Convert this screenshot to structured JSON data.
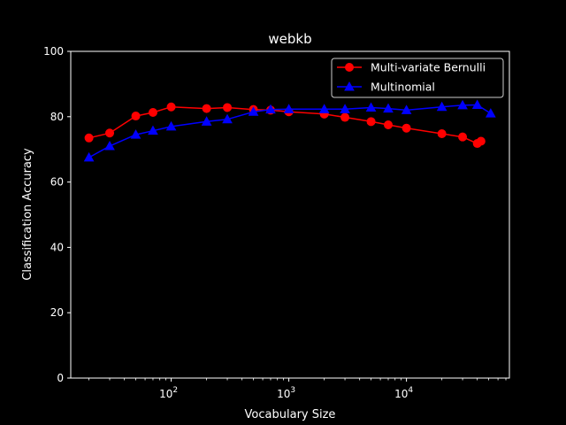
{
  "chart_data": {
    "type": "line",
    "title": "webkb",
    "xlabel": "Vocabulary Size",
    "ylabel": "Classification Accuracy",
    "xscale": "log",
    "xlim": [
      14,
      75000
    ],
    "ylim": [
      0,
      100
    ],
    "yticks": [
      "0",
      "20",
      "40",
      "60",
      "80",
      "100"
    ],
    "xticks": [
      {
        "value": 100,
        "base": "10",
        "exp": "2"
      },
      {
        "value": 1000,
        "base": "10",
        "exp": "3"
      },
      {
        "value": 10000,
        "base": "10",
        "exp": "4"
      }
    ],
    "grid": false,
    "legend_position": "top-right",
    "series": [
      {
        "name": "Multi-variate Bernulli",
        "color": "#ff0000",
        "marker": "circle",
        "x": [
          20,
          30,
          50,
          70,
          100,
          200,
          300,
          500,
          700,
          1000,
          2000,
          3000,
          5000,
          7000,
          10000,
          20000,
          30000,
          40000,
          43000
        ],
        "y": [
          73.5,
          75.0,
          80.2,
          81.3,
          83.0,
          82.5,
          82.8,
          82.2,
          82.0,
          81.5,
          80.8,
          79.8,
          78.5,
          77.5,
          76.5,
          74.8,
          73.8,
          71.8,
          72.5
        ]
      },
      {
        "name": "Multinomial",
        "color": "#0000ff",
        "marker": "triangle",
        "x": [
          20,
          30,
          50,
          70,
          100,
          200,
          300,
          500,
          700,
          1000,
          2000,
          3000,
          5000,
          7000,
          10000,
          20000,
          30000,
          40000,
          52000
        ],
        "y": [
          67.5,
          71.0,
          74.5,
          75.7,
          77.0,
          78.5,
          79.2,
          81.5,
          82.2,
          82.3,
          82.3,
          82.3,
          82.8,
          82.5,
          82.0,
          83.0,
          83.5,
          83.6,
          81.0
        ]
      }
    ]
  }
}
